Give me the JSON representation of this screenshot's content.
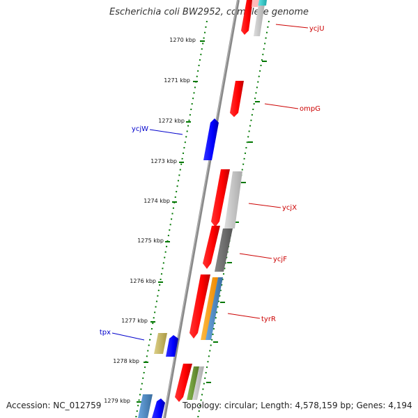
{
  "title": "Escherichia coli BW2952, complete genome",
  "footer": {
    "accession": "Accession: NC_012759",
    "topology": "Topology: circular; Length: 4,578,159 bp; Genes: 4,194"
  },
  "ticks": [
    "1270 kbp",
    "1271 kbp",
    "1272 kbp",
    "1273 kbp",
    "1274 kbp",
    "1275 kbp",
    "1276 kbp",
    "1277 kbp",
    "1278 kbp",
    "1279 kbp"
  ],
  "gene_labels": [
    {
      "name": "ycjU",
      "color": "#cc0000"
    },
    {
      "name": "ompG",
      "color": "#cc0000"
    },
    {
      "name": "ycjW",
      "color": "#0000cc"
    },
    {
      "name": "ycjX",
      "color": "#cc0000"
    },
    {
      "name": "ycjF",
      "color": "#cc0000"
    },
    {
      "name": "tyrR",
      "color": "#cc0000"
    },
    {
      "name": "tpx",
      "color": "#0000cc"
    }
  ],
  "colors": {
    "gene_red": "#ff0000",
    "gene_blue": "#0000ff",
    "gene_grey": "#c0c0c0",
    "gene_dark_grey": "#666666",
    "gene_orange": "#ff9900",
    "gene_steelblue": "#4a86c0",
    "gene_olive": "#c8bb66",
    "gene_green": "#669933",
    "gene_cyan": "#33cccc",
    "backbone": "#888888",
    "tick_green": "#007700"
  }
}
